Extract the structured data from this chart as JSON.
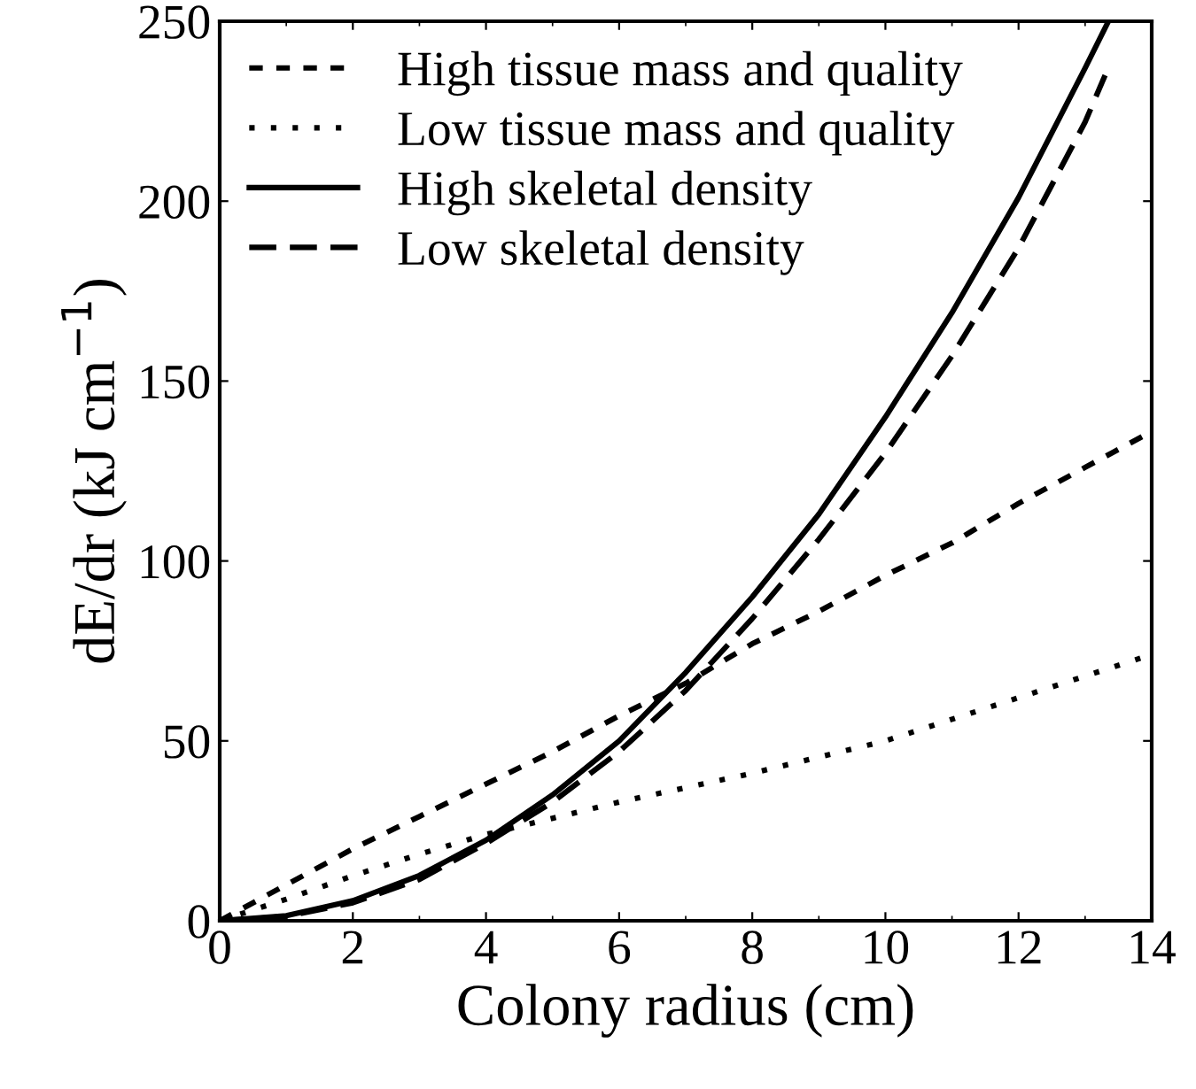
{
  "chart_data": {
    "type": "line",
    "xlabel": "Colony radius (cm)",
    "ylabel": "dE/dr (kJ cm$^{−1}$)",
    "xlim": [
      0,
      14
    ],
    "ylim": [
      0,
      250
    ],
    "xticks": [
      0,
      2,
      4,
      6,
      8,
      10,
      12,
      14
    ],
    "yticks": [
      0,
      50,
      100,
      150,
      200,
      250
    ],
    "grid": false,
    "legend": "top left",
    "marker": "none",
    "series": [
      {
        "name": "High tissue mass and quality",
        "color": "#000000",
        "line_style": "dashed",
        "x": [
          0,
          1,
          2,
          3,
          4,
          5,
          6,
          7,
          8,
          9,
          10,
          11,
          12,
          13,
          14
        ],
        "values": [
          0,
          10,
          20,
          29,
          38,
          47,
          57,
          66,
          77,
          86,
          96,
          105,
          116,
          126,
          136
        ]
      },
      {
        "name": "Low tissue mass and quality",
        "color": "#000000",
        "line_style": "dotted",
        "x": [
          0,
          1,
          2,
          3,
          4,
          5,
          6,
          7,
          8,
          9,
          10,
          11,
          12,
          13,
          14
        ],
        "values": [
          0,
          6,
          12.5,
          18.5,
          24,
          28.5,
          33,
          37,
          41,
          45.5,
          50,
          56,
          62,
          68,
          74
        ]
      },
      {
        "name": "High skeletal density",
        "color": "#000000",
        "line_style": "solid",
        "x": [
          0,
          1,
          2,
          3,
          4,
          5,
          6,
          7,
          8,
          9,
          10,
          11,
          12,
          13,
          13.35
        ],
        "values": [
          0,
          1.4,
          5.6,
          12.6,
          22.4,
          35,
          50,
          69,
          90,
          113,
          140,
          169,
          201,
          237,
          250
        ]
      },
      {
        "name": "Low skeletal density",
        "color": "#000000",
        "line_style": "dashed",
        "x": [
          0,
          1,
          2,
          3,
          4,
          5,
          6,
          7,
          8,
          9,
          10,
          11,
          12,
          13,
          13.3
        ],
        "values": [
          0,
          1.2,
          5,
          11.5,
          21.5,
          33,
          47,
          64,
          84,
          106,
          130,
          157,
          187,
          222,
          235
        ]
      }
    ]
  }
}
